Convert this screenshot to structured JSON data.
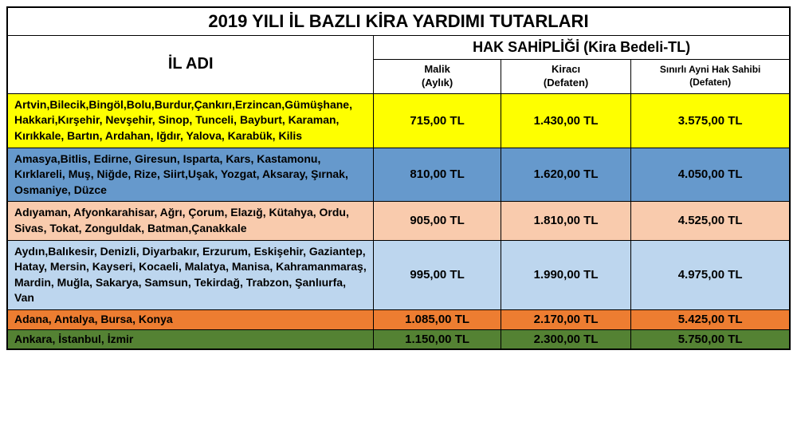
{
  "title": "2019 YILI İL BAZLI KİRA YARDIMI TUTARLARI",
  "headers": {
    "il_adi": "İL ADI",
    "hak": "HAK SAHİPLİĞİ (Kira Bedeli-TL)",
    "malik_l1": "Malik",
    "malik_l2": "(Aylık)",
    "kiraci_l1": "Kiracı",
    "kiraci_l2": "(Defaten)",
    "sinirli": "Sınırlı Ayni Hak Sahibi (Defaten)"
  },
  "colors": {
    "yellow": "#feff00",
    "blue": "#6699cc",
    "peach": "#f9cbad",
    "lightblue": "#bdd6ee",
    "orange": "#ed7d31",
    "green": "#548233",
    "header_bg": "#ffffff"
  },
  "rows": [
    {
      "cities": "Artvin,Bilecik,Bingöl,Bolu,Burdur,Çankırı,Erzincan,Gümüşhane, Hakkari,Kırşehir, Nevşehir, Sinop, Tunceli, Bayburt, Karaman, Kırıkkale, Bartın, Ardahan, Iğdır, Yalova, Karabük, Kilis",
      "malik": "715,00 TL",
      "kiraci": "1.430,00 TL",
      "sinirli": "3.575,00 TL",
      "color": "yellow",
      "tight": false
    },
    {
      "cities": "Amasya,Bitlis,  Edirne, Giresun, Isparta, Kars, Kastamonu, Kırklareli, Muş, Niğde, Rize, Siirt,Uşak, Yozgat, Aksaray, Şırnak, Osmaniye, Düzce",
      "malik": "810,00 TL",
      "kiraci": "1.620,00 TL",
      "sinirli": "4.050,00 TL",
      "color": "blue",
      "tight": false
    },
    {
      "cities": "Adıyaman, Afyonkarahisar, Ağrı, Çorum, Elazığ, Kütahya, Ordu, Sivas, Tokat, Zonguldak, Batman,Çanakkale",
      "malik": "905,00 TL",
      "kiraci": "1.810,00 TL",
      "sinirli": "4.525,00 TL",
      "color": "peach",
      "tight": false
    },
    {
      "cities": "Aydın,Balıkesir, Denizli, Diyarbakır, Erzurum, Eskişehir, Gaziantep, Hatay, Mersin, Kayseri, Kocaeli, Malatya, Manisa, Kahramanmaraş, Mardin, Muğla, Sakarya, Samsun, Tekirdağ, Trabzon, Şanlıurfa, Van",
      "malik": "995,00 TL",
      "kiraci": "1.990,00 TL",
      "sinirli": "4.975,00 TL",
      "color": "lightblue",
      "tight": false
    },
    {
      "cities": "Adana, Antalya, Bursa, Konya",
      "malik": "1.085,00 TL",
      "kiraci": "2.170,00 TL",
      "sinirli": "5.425,00 TL",
      "color": "orange",
      "tight": true
    },
    {
      "cities": "Ankara, İstanbul, İzmir",
      "malik": "1.150,00 TL",
      "kiraci": "2.300,00 TL",
      "sinirli": "5.750,00 TL",
      "color": "green",
      "tight": true
    }
  ]
}
